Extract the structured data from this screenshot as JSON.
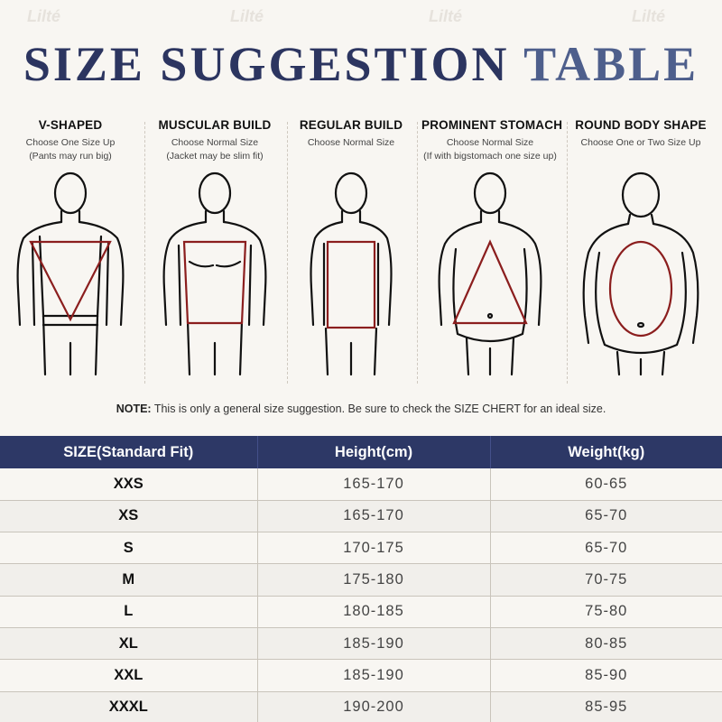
{
  "title": {
    "part1": "SIZE SUGGESTION",
    "part2": "TABLE"
  },
  "watermark": "Lilté",
  "body_types": [
    {
      "name": "V-SHAPED",
      "line1": "Choose One Size Up",
      "line2": "(Pants may run big)"
    },
    {
      "name": "MUSCULAR BUILD",
      "line1": "Choose Normal Size",
      "line2": "(Jacket may be slim fit)"
    },
    {
      "name": "REGULAR BUILD",
      "line1": "Choose Normal Size",
      "line2": ""
    },
    {
      "name": "PROMINENT STOMACH",
      "line1": "Choose Normal Size",
      "line2": "(If with bigstomach one size up)"
    },
    {
      "name": "ROUND BODY SHAPE",
      "line1": "Choose One or Two Size Up",
      "line2": ""
    }
  ],
  "note": {
    "label": "NOTE:",
    "text": "This is only a general size suggestion. Be sure to check the SIZE CHERT for an ideal size."
  },
  "table": {
    "headers": [
      "SIZE(Standard Fit)",
      "Height(cm)",
      "Weight(kg)"
    ],
    "rows": [
      [
        "XXS",
        "165-170",
        "60-65"
      ],
      [
        "XS",
        "165-170",
        "65-70"
      ],
      [
        "S",
        "170-175",
        "65-70"
      ],
      [
        "M",
        "175-180",
        "70-75"
      ],
      [
        "L",
        "180-185",
        "75-80"
      ],
      [
        "XL",
        "185-190",
        "80-85"
      ],
      [
        "XXL",
        "185-190",
        "85-90"
      ],
      [
        "XXXL",
        "190-200",
        "85-95"
      ]
    ]
  },
  "colors": {
    "navy": "#2c3560",
    "header_bg": "#2d3866",
    "shape_red": "#8b1e1e",
    "outline": "#111111"
  }
}
